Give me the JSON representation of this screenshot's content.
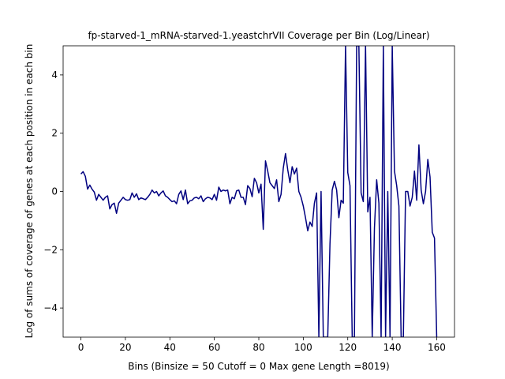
{
  "chart_data": {
    "type": "line",
    "title": "fp-starved-1_mRNA-starved-1.yeastchrVII Coverage per Bin (Log/Linear)",
    "xlabel": "Bins  (Binsize = 50 Cutoff = 0 Max gene Length =8019)",
    "ylabel": "Log of sums of coverage of genes at each position in each bin",
    "xlim": [
      -8,
      168
    ],
    "ylim": [
      -5,
      5
    ],
    "xticks": [
      0,
      20,
      40,
      60,
      80,
      100,
      120,
      140,
      160
    ],
    "yticks": [
      -4,
      -2,
      0,
      2,
      4
    ],
    "grid": false,
    "legend": "none",
    "series": [
      {
        "color": "#000080",
        "x": [
          0,
          1,
          2,
          3,
          4,
          5,
          6,
          7,
          8,
          9,
          10,
          11,
          12,
          13,
          14,
          15,
          16,
          17,
          18,
          19,
          20,
          21,
          22,
          23,
          24,
          25,
          26,
          27,
          28,
          29,
          30,
          31,
          32,
          33,
          34,
          35,
          36,
          37,
          38,
          39,
          40,
          41,
          42,
          43,
          44,
          45,
          46,
          47,
          48,
          49,
          50,
          51,
          52,
          53,
          54,
          55,
          56,
          57,
          58,
          59,
          60,
          61,
          62,
          63,
          64,
          65,
          66,
          67,
          68,
          69,
          70,
          71,
          72,
          73,
          74,
          75,
          76,
          77,
          78,
          79,
          80,
          81,
          82,
          83,
          84,
          85,
          86,
          87,
          88,
          89,
          90,
          91,
          92,
          93,
          94,
          95,
          96,
          97,
          98,
          99,
          100,
          101,
          102,
          103,
          104,
          105,
          106,
          107,
          108,
          109,
          110,
          111,
          112,
          113,
          114,
          115,
          116,
          117,
          118,
          119,
          120,
          121,
          122,
          123,
          124,
          125,
          126,
          127,
          128,
          129,
          130,
          131,
          132,
          133,
          134,
          135,
          136,
          137,
          138,
          139,
          140,
          141,
          142,
          143,
          144,
          145,
          146,
          147,
          148,
          149,
          150,
          151,
          152,
          153,
          154,
          155,
          156,
          157,
          158,
          159,
          160
        ],
        "y": [
          0.6,
          0.68,
          0.52,
          0.08,
          0.22,
          0.08,
          -0.02,
          -0.3,
          -0.1,
          -0.2,
          -0.3,
          -0.2,
          -0.15,
          -0.6,
          -0.45,
          -0.4,
          -0.75,
          -0.4,
          -0.3,
          -0.2,
          -0.28,
          -0.3,
          -0.28,
          -0.05,
          -0.2,
          -0.08,
          -0.28,
          -0.22,
          -0.25,
          -0.28,
          -0.2,
          -0.1,
          0.05,
          -0.05,
          0.0,
          -0.15,
          -0.05,
          0.02,
          -0.15,
          -0.2,
          -0.28,
          -0.35,
          -0.32,
          -0.42,
          -0.1,
          0.02,
          -0.28,
          0.05,
          -0.42,
          -0.32,
          -0.3,
          -0.22,
          -0.2,
          -0.25,
          -0.15,
          -0.35,
          -0.25,
          -0.2,
          -0.22,
          -0.28,
          -0.1,
          -0.3,
          0.15,
          0.0,
          0.05,
          0.02,
          0.05,
          -0.42,
          -0.2,
          -0.25,
          0.02,
          0.05,
          -0.2,
          -0.2,
          -0.45,
          0.2,
          0.1,
          -0.18,
          0.45,
          0.3,
          -0.05,
          0.25,
          -1.3,
          1.05,
          0.7,
          0.3,
          0.2,
          0.1,
          0.4,
          -0.35,
          -0.1,
          0.8,
          1.3,
          0.75,
          0.3,
          0.85,
          0.6,
          0.8,
          0.0,
          -0.2,
          -0.5,
          -0.9,
          -1.35,
          -1.05,
          -1.2,
          -0.4,
          -0.05,
          -5.0,
          0.0,
          -5.0,
          -5.0,
          -5.0,
          -1.8,
          0.05,
          0.35,
          0.05,
          -0.9,
          -0.3,
          -0.4,
          5.0,
          0.65,
          0.2,
          -5.0,
          -5.0,
          5.0,
          5.0,
          -0.05,
          -0.35,
          5.0,
          -0.7,
          -0.2,
          -5.0,
          -1.25,
          0.4,
          -0.4,
          -5.0,
          5.0,
          -5.0,
          0.0,
          -5.0,
          5.0,
          0.7,
          0.2,
          -0.5,
          -5.0,
          -5.0,
          0.0,
          0.0,
          -0.5,
          -0.2,
          0.7,
          -0.3,
          1.6,
          0.05,
          -0.42,
          0.0,
          1.1,
          0.5,
          -1.4,
          -1.6,
          -5.0
        ]
      }
    ]
  }
}
